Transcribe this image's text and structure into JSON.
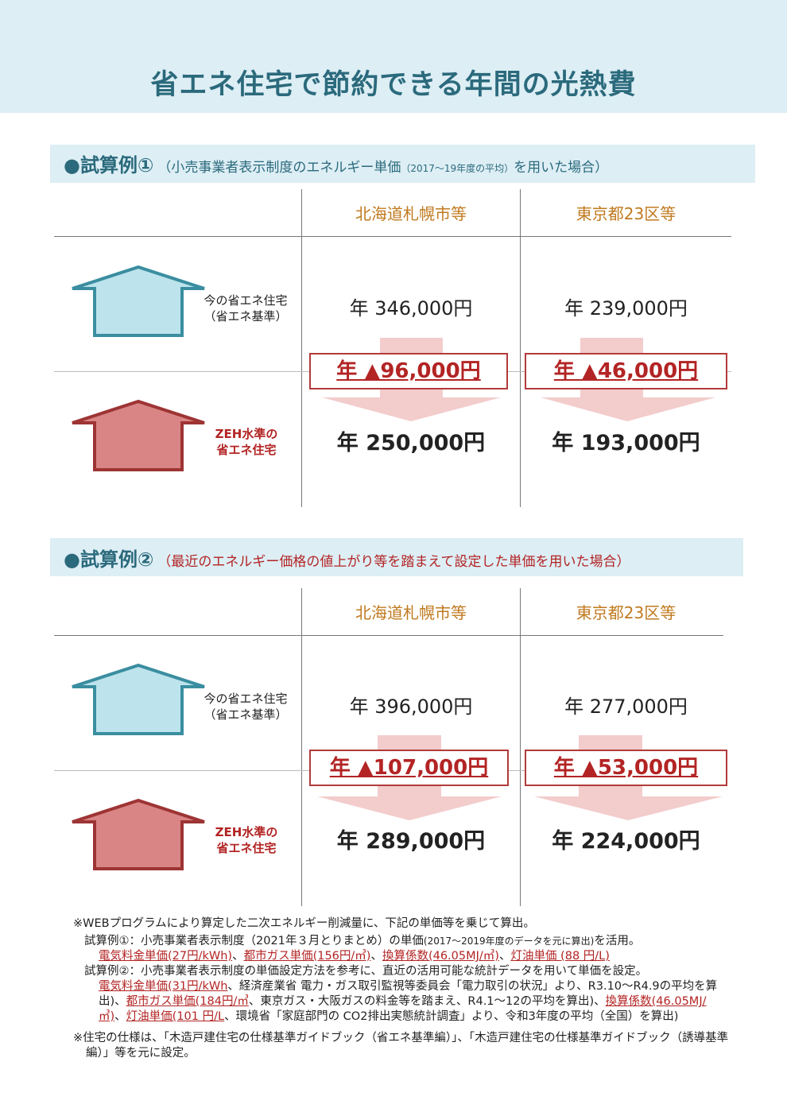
{
  "title": "省エネ住宅で節約できる年間の光熱費",
  "colors": {
    "accent": "#2b6a7c",
    "band": "#ddeef5",
    "red": "#b32424",
    "orange": "#c07a1f",
    "house_blue": "#bde3ec",
    "house_red": "#d98585"
  },
  "sections": [
    {
      "head": "●試算例①",
      "sub_before": "（小売事業者表示制度のエネルギー単価",
      "sub_tiny": "（2017～19年度の平均）",
      "sub_after": "を用いた場合）",
      "columns": [
        "北海道札幌市等",
        "東京都23区等"
      ],
      "current_label_1": "今の省エネ住宅",
      "current_label_2": "（省エネ基準）",
      "zeh_label_1": "ZEH水準の",
      "zeh_label_2": "省エネ住宅",
      "current": [
        "年 346,000円",
        "年 239,000円"
      ],
      "reduction": [
        "年 ▲96,000円",
        "年 ▲46,000円"
      ],
      "zeh": [
        "年 250,000円",
        "年 193,000円"
      ]
    },
    {
      "head": "●試算例②",
      "sub": "（最近のエネルギー価格の値上がり等を踏まえて設定した単価を用いた場合）",
      "columns": [
        "北海道札幌市等",
        "東京都23区等"
      ],
      "current_label_1": "今の省エネ住宅",
      "current_label_2": "（省エネ基準）",
      "zeh_label_1": "ZEH水準の",
      "zeh_label_2": "省エネ住宅",
      "current": [
        "年 396,000円",
        "年 277,000円"
      ],
      "reduction": [
        "年 ▲107,000円",
        "年 ▲53,000円"
      ],
      "zeh": [
        "年 289,000円",
        "年 224,000円"
      ]
    }
  ],
  "notes": {
    "n1": "※WEBプログラムにより算定した二次エネルギー削減量に、下記の単価等を乗じて算出。",
    "ex1_a": "試算例①：小売事業者表示制度（2021年３月とりまとめ）の単価",
    "ex1_b": "(2017～2019年度のデータを元に算出)",
    "ex1_c": "を活用。",
    "ex1_u1": "電気料金単価(27円/kWh)",
    "ex1_u2": "都市ガス単価(156円/㎥)",
    "ex1_u3": "換算係数(46.05MJ/㎥)",
    "ex1_u4": "灯油単価 (88 円/L)",
    "sep": "、",
    "ex2_a": "試算例②：小売事業者表示制度の単価設定方法を参考に、直近の活用可能な統計データを用いて単価を設定。",
    "ex2_u1": "電気料金単価(31円/kWh",
    "ex2_t1": "、経済産業省 電力・ガス取引監視等委員会「電力取引の状況」より、R3.10～R4.9の平均を算出)、",
    "ex2_u2": "都市ガス単価(184円/㎥",
    "ex2_t2": "、東京ガス・大阪ガスの料金等を踏まえ、R4.1～12の平均を算出)、",
    "ex2_u3": "換算係数(46.05MJ/㎥)",
    "ex2_u4": "灯油単価(101 円/L",
    "ex2_t3": "、環境省「家庭部門の CO2排出実態統計調査」より、令和3年度の平均（全国）を算出)",
    "n2": "※住宅の仕様は、「木造戸建住宅の仕様基準ガイドブック（省エネ基準編）」、「木造戸建住宅の仕様基準ガイドブック（誘導基準編）」等を元に設定。"
  }
}
